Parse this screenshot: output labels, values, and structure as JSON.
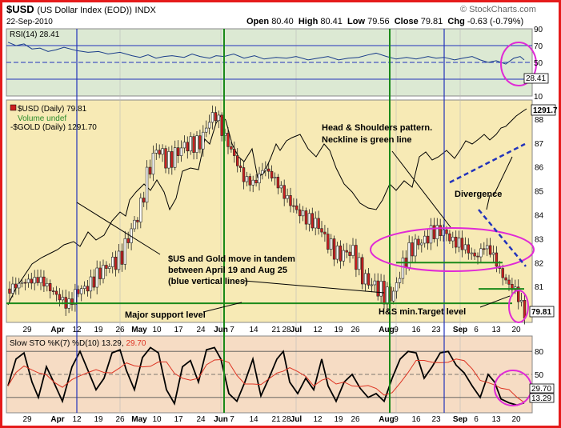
{
  "header": {
    "symbol": "$USD",
    "description": "(US Dollar Index (EOD))",
    "exchange": "INDX",
    "date": "22-Sep-2010",
    "open_label": "Open",
    "open": "80.40",
    "high_label": "High",
    "high": "80.41",
    "low_label": "Low",
    "low": "79.56",
    "close_label": "Close",
    "close": "79.81",
    "chg_label": "Chg",
    "chg": "-0.63 (-0.79%)",
    "watermark": "© StockCharts.com"
  },
  "colors": {
    "rsi_bg": "#dce9d3",
    "price_bg": "#f7eab5",
    "sto_bg": "#f6dcc4",
    "up_candle": "#ffffff",
    "down_candle": "#cc1f1f",
    "gold_line": "#000000",
    "green_line": "#1a8a1a",
    "blue_line": "#2233bb",
    "annot": "#e02ad6",
    "sto_k": "#000000",
    "sto_d": "#dd3322"
  },
  "x_axis_labels": [
    "29",
    "Apr",
    "12",
    "19",
    "26",
    "May",
    "10",
    "17",
    "24",
    "Jun",
    "7",
    "14",
    "21",
    "28",
    "Jul",
    "12",
    "19",
    "26",
    "Aug",
    "9",
    "16",
    "23",
    "Sep",
    "6",
    "13",
    "20"
  ],
  "chart_data": [
    {
      "type": "line",
      "title": "RSI(14) 28.41",
      "series": [
        {
          "name": "RSI(14)",
          "last": 28.41
        }
      ],
      "yticks": [
        10,
        30,
        50,
        70,
        90
      ],
      "reference_lines": [
        30,
        50,
        70
      ],
      "y_range": [
        10,
        90
      ]
    },
    {
      "type": "candlestick",
      "legend": [
        "$USD (Daily) 79.81",
        "Volume undef",
        "-$GOLD (Daily) 1291.70"
      ],
      "series": [
        {
          "name": "$USD (Daily)",
          "last": 79.81
        },
        {
          "name": "$GOLD (Daily)",
          "last": 1291.7
        }
      ],
      "y_range": [
        79.5,
        88.8
      ],
      "yticks": [
        81,
        82,
        83,
        84,
        85,
        86,
        87,
        88
      ],
      "right_labels": [
        "1291.7",
        "79.81"
      ],
      "annotations": [
        "Head & Shoulders pattern.",
        "Neckline is green line",
        "Divergence",
        "$US and Gold move in tandem",
        "between April 19 and Aug 25",
        "(blue vertical lines)",
        "Major support level",
        "H&S  min.Target level"
      ],
      "green_horizontal_levels": [
        80.3,
        82.0,
        80.9
      ]
    },
    {
      "type": "line",
      "title_prefix": "Slow STO %K(7) %D(10)",
      "k_value": "13.29",
      "d_value": "29.70",
      "series": [
        {
          "name": "%K(7)",
          "last": 13.29
        },
        {
          "name": "%D(10)",
          "last": 29.7
        }
      ],
      "yticks": [
        20,
        50,
        80
      ],
      "right_labels": [
        "29.70",
        "13.29"
      ],
      "y_range": [
        0,
        100
      ]
    }
  ]
}
